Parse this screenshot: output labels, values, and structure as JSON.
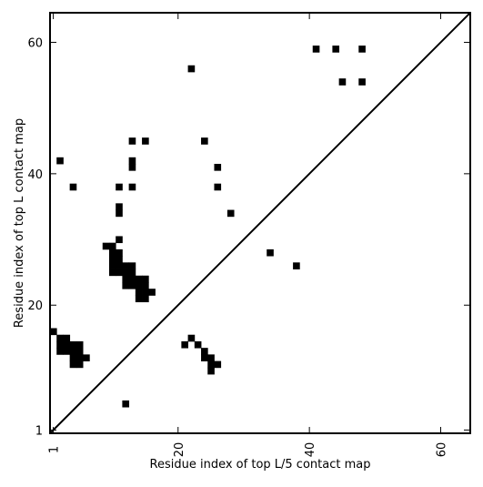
{
  "chart_data": {
    "type": "scatter",
    "marker": "square",
    "xlabel": "Residue index of top L/5 contact map",
    "ylabel": "Residue index of top L contact map",
    "xlim": [
      0.5,
      64.5
    ],
    "ylim": [
      0.5,
      64.5
    ],
    "xticks": [
      1,
      20,
      40,
      60
    ],
    "yticks": [
      1,
      20,
      40,
      60
    ],
    "xtick_labels": [
      "1",
      "20",
      "40",
      "60"
    ],
    "ytick_labels": [
      "1",
      "20",
      "40",
      "60"
    ],
    "diagonal": true,
    "colors": {
      "marker": "#000000",
      "diagonal": "#000000",
      "frame": "#000000",
      "background": "#ffffff"
    },
    "points_upper": [
      [
        41,
        59
      ],
      [
        44,
        59
      ],
      [
        48,
        59
      ],
      [
        22,
        56
      ],
      [
        45,
        54
      ],
      [
        48,
        54
      ],
      [
        13,
        45
      ],
      [
        15,
        45
      ],
      [
        24,
        45
      ],
      [
        13,
        42
      ],
      [
        13,
        41
      ],
      [
        26,
        41
      ],
      [
        2,
        42
      ],
      [
        4,
        38
      ],
      [
        11,
        38
      ],
      [
        13,
        38
      ],
      [
        26,
        38
      ],
      [
        11,
        35
      ],
      [
        11,
        34
      ],
      [
        28,
        34
      ],
      [
        11,
        30
      ],
      [
        9,
        29
      ],
      [
        10,
        29
      ],
      [
        10,
        28
      ],
      [
        11,
        28
      ],
      [
        38,
        26
      ],
      [
        34,
        28
      ],
      [
        10,
        27
      ],
      [
        11,
        27
      ],
      [
        10,
        26
      ],
      [
        11,
        26
      ],
      [
        12,
        26
      ],
      [
        13,
        26
      ],
      [
        10,
        25
      ],
      [
        11,
        25
      ],
      [
        12,
        25
      ],
      [
        13,
        25
      ],
      [
        12,
        24
      ],
      [
        13,
        24
      ],
      [
        14,
        24
      ],
      [
        15,
        24
      ],
      [
        12,
        23
      ],
      [
        13,
        23
      ],
      [
        14,
        23
      ],
      [
        15,
        23
      ],
      [
        14,
        22
      ],
      [
        15,
        22
      ],
      [
        16,
        22
      ],
      [
        14,
        21
      ],
      [
        15,
        21
      ]
    ],
    "points_lower": [
      [
        1,
        16
      ],
      [
        2,
        15
      ],
      [
        3,
        15
      ],
      [
        2,
        14
      ],
      [
        3,
        14
      ],
      [
        4,
        14
      ],
      [
        5,
        14
      ],
      [
        2,
        13
      ],
      [
        3,
        13
      ],
      [
        4,
        13
      ],
      [
        5,
        13
      ],
      [
        4,
        12
      ],
      [
        5,
        12
      ],
      [
        6,
        12
      ],
      [
        4,
        11
      ],
      [
        5,
        11
      ],
      [
        22,
        15
      ],
      [
        21,
        14
      ],
      [
        23,
        14
      ],
      [
        24,
        13
      ],
      [
        24,
        12
      ],
      [
        25,
        12
      ],
      [
        25,
        11
      ],
      [
        26,
        11
      ],
      [
        25,
        10
      ],
      [
        12,
        5
      ]
    ]
  }
}
